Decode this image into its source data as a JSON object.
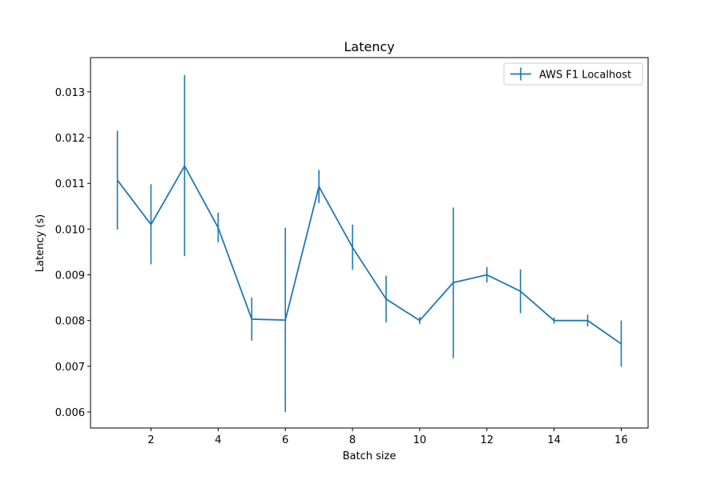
{
  "chart_data": {
    "type": "line",
    "title": "Latency",
    "xlabel": "Batch size",
    "ylabel": "Latency (s)",
    "xlim": [
      0.2,
      16.8
    ],
    "ylim": [
      0.00565,
      0.01375
    ],
    "xticks": [
      2,
      4,
      6,
      8,
      10,
      12,
      14,
      16
    ],
    "yticks": [
      0.006,
      0.007,
      0.008,
      0.009,
      0.01,
      0.011,
      0.012,
      0.013
    ],
    "ytick_labels": [
      "0.006",
      "0.007",
      "0.008",
      "0.009",
      "0.010",
      "0.011",
      "0.012",
      "0.013"
    ],
    "grid": false,
    "legend_position": "top-right",
    "color": "#1f77b4",
    "series": [
      {
        "name": "AWS F1 Localhost",
        "x": [
          1,
          2,
          3,
          4,
          5,
          6,
          7,
          8,
          9,
          10,
          11,
          12,
          13,
          14,
          15,
          16
        ],
        "y": [
          0.01107,
          0.0101,
          0.01138,
          0.01003,
          0.00803,
          0.00801,
          0.01093,
          0.0096,
          0.00847,
          0.008,
          0.00883,
          0.009,
          0.00864,
          0.008,
          0.008,
          0.00749
        ],
        "err_low": [
          0.00999,
          0.00923,
          0.00941,
          0.00971,
          0.00756,
          0.006,
          0.01057,
          0.00911,
          0.00796,
          0.00792,
          0.00718,
          0.00883,
          0.00816,
          0.00793,
          0.00787,
          0.00699
        ],
        "err_high": [
          0.01215,
          0.01098,
          0.01337,
          0.01036,
          0.0085,
          0.01003,
          0.01129,
          0.0101,
          0.00898,
          0.00808,
          0.01047,
          0.00917,
          0.00912,
          0.00807,
          0.00813,
          0.008
        ]
      }
    ]
  }
}
